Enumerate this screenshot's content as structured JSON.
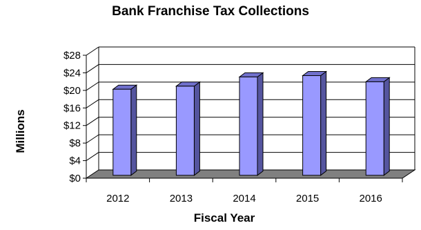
{
  "chart_data": {
    "type": "bar",
    "title": "Bank Franchise Tax Collections",
    "xlabel": "Fiscal Year",
    "ylabel": "Millions",
    "categories": [
      "2012",
      "2013",
      "2014",
      "2015",
      "2016"
    ],
    "values": [
      19.6,
      20.3,
      22.4,
      22.7,
      21.3
    ],
    "yticks": [
      "$0",
      "$4",
      "$8",
      "$12",
      "$16",
      "$20",
      "$24",
      "$28"
    ],
    "ylim": [
      0,
      28
    ],
    "grid": true,
    "legend": "none",
    "colors": {
      "bar_front": "#9999ff",
      "bar_side": "#55559f",
      "bar_top": "#7070cc",
      "floor": "#808080",
      "grid": "#000000"
    }
  }
}
